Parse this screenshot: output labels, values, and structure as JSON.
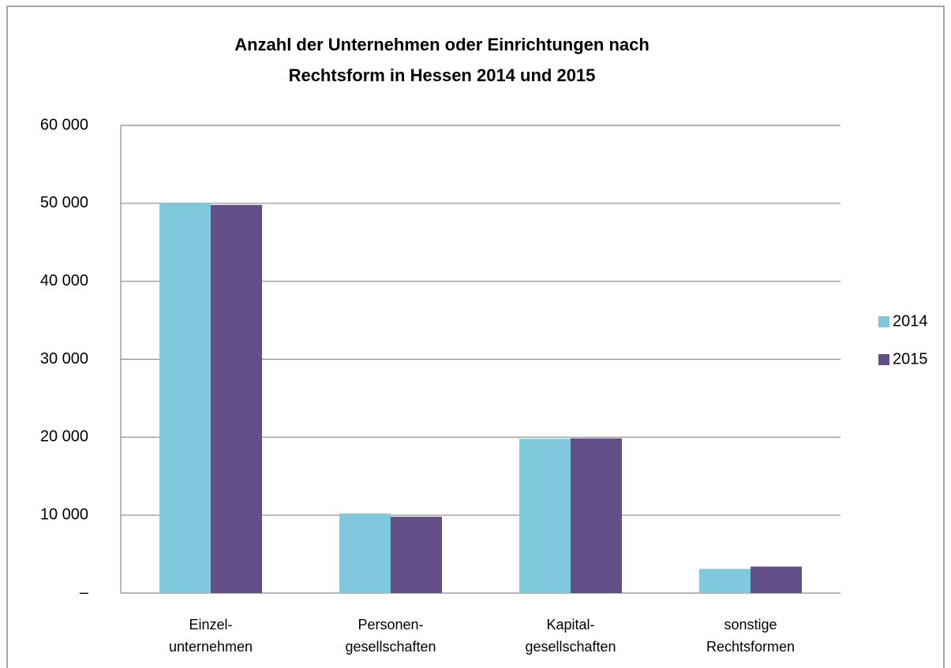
{
  "chart_data": {
    "type": "bar",
    "title": [
      "Anzahl der Unternehmen oder Einrichtungen nach",
      "Rechtsform in Hessen 2014 und 2015"
    ],
    "categories": [
      [
        "Einzel-",
        "unternehmen"
      ],
      [
        "Personen-",
        "gesellschaften"
      ],
      [
        "Kapital-",
        "gesellschaften"
      ],
      [
        "sonstige",
        "Rechtsformen"
      ]
    ],
    "series": [
      {
        "name": "2014",
        "color": "#80c9dc",
        "values": [
          50100,
          10200,
          19800,
          3100
        ]
      },
      {
        "name": "2015",
        "color": "#624f87",
        "values": [
          49800,
          9800,
          19850,
          3400
        ]
      }
    ],
    "ylim": [
      0,
      60000
    ],
    "yticks": [
      {
        "value": 0,
        "label": "–"
      },
      {
        "value": 10000,
        "label": "10 000"
      },
      {
        "value": 20000,
        "label": "20 000"
      },
      {
        "value": 30000,
        "label": "30 000"
      },
      {
        "value": 40000,
        "label": "40 000"
      },
      {
        "value": 50000,
        "label": "50 000"
      },
      {
        "value": 60000,
        "label": "60 000"
      }
    ],
    "grid": true,
    "legend": "right"
  }
}
